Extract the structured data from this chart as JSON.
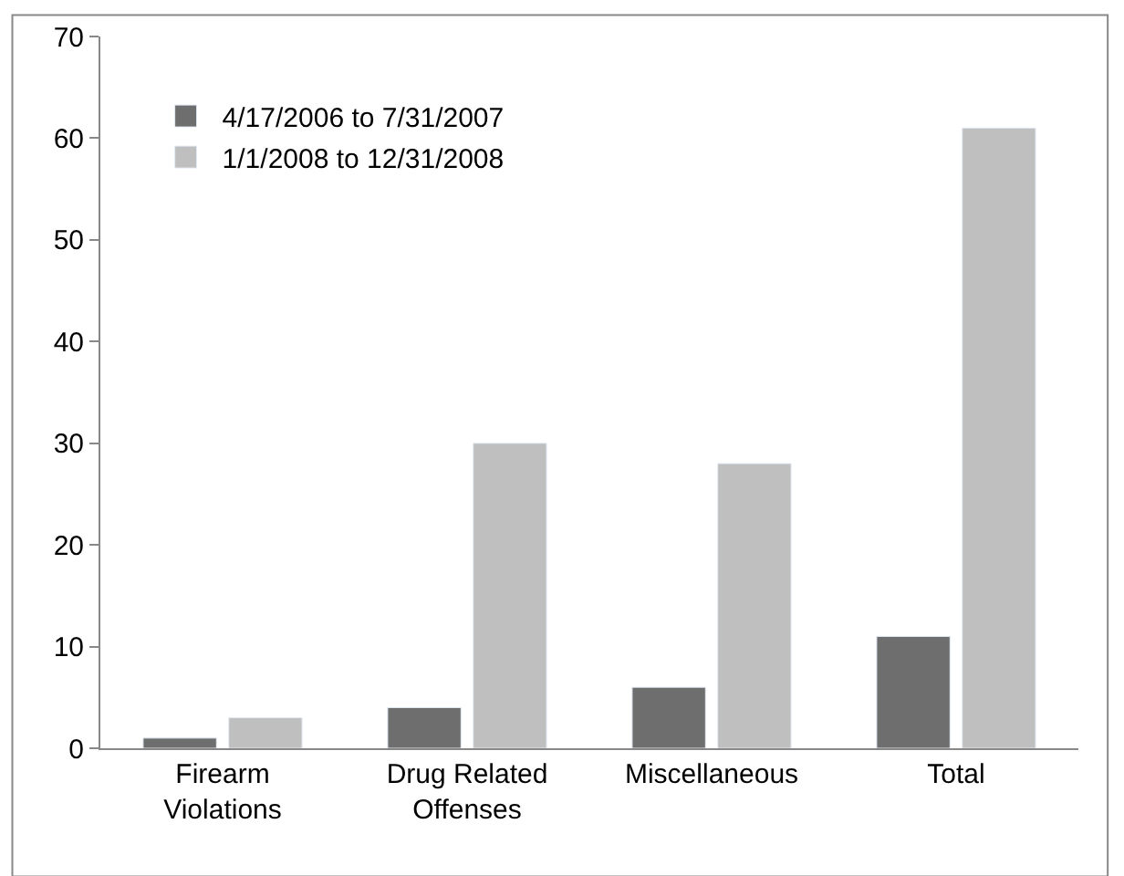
{
  "chart_data": {
    "type": "bar",
    "categories": [
      "Firearm\nViolations",
      "Drug Related\nOffenses",
      "Miscellaneous",
      "Total"
    ],
    "series": [
      {
        "name": "4/17/2006 to 7/31/2007",
        "color": "#6e6e6e",
        "values": [
          1,
          4,
          6,
          11
        ]
      },
      {
        "name": "1/1/2008 to 12/31/2008",
        "color": "#bfbfbf",
        "values": [
          3,
          30,
          28,
          61
        ]
      }
    ],
    "ylim": [
      0,
      70
    ],
    "yticks": [
      0,
      10,
      20,
      30,
      40,
      50,
      60,
      70
    ],
    "grid": false,
    "legend": "top left"
  }
}
